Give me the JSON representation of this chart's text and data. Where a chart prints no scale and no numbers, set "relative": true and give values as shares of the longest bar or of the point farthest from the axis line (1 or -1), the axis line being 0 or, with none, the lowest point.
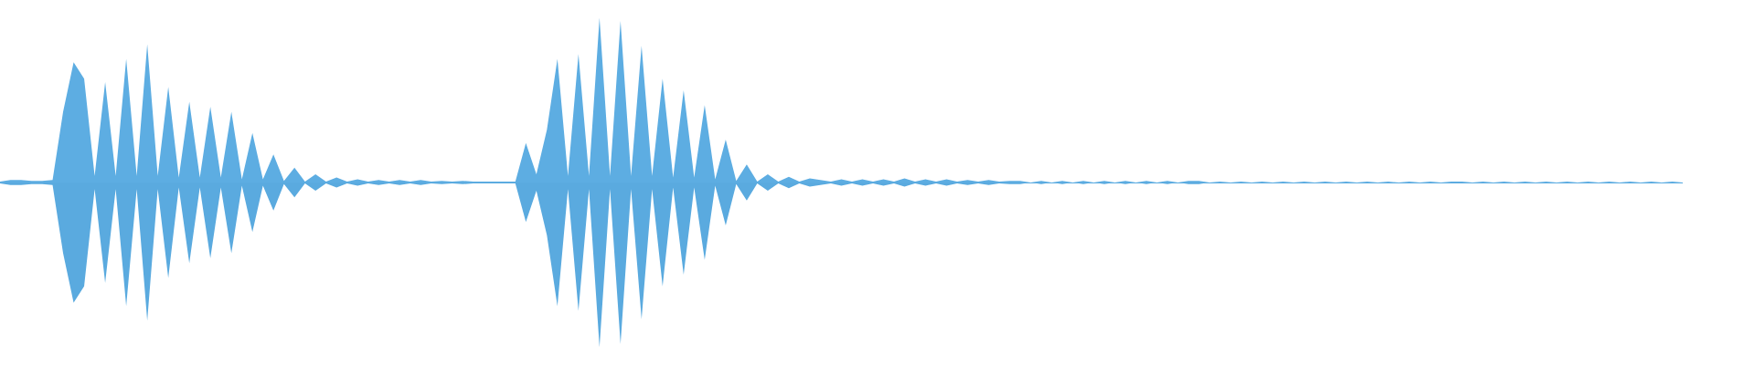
{
  "chart_data": {
    "type": "area",
    "relative": true,
    "categories": [
      null,
      null,
      null,
      null,
      null,
      null,
      null,
      null,
      null,
      null,
      null,
      null,
      null,
      null,
      null,
      null,
      null,
      null,
      null,
      null,
      null,
      null,
      null,
      null,
      null,
      null,
      null,
      null,
      null,
      null,
      null,
      null,
      null,
      null,
      null,
      null,
      null,
      null,
      null,
      null,
      null,
      null,
      null,
      null,
      null,
      null,
      null,
      null,
      null,
      null,
      null,
      null,
      null,
      null,
      null,
      null,
      null,
      null,
      null,
      null,
      null,
      null,
      null,
      null,
      null,
      null,
      null,
      null,
      null,
      null,
      null,
      null,
      null,
      null,
      null,
      null,
      null,
      null,
      null,
      null,
      null,
      null,
      null,
      null,
      null,
      null,
      null,
      null,
      null,
      null,
      null,
      null,
      null,
      null,
      null,
      null,
      null,
      null,
      null,
      null,
      null,
      null,
      null,
      null,
      null,
      null,
      null,
      null,
      null,
      null,
      null,
      null,
      null,
      null,
      null,
      null,
      null,
      null,
      null,
      null,
      null,
      null,
      null,
      null,
      null,
      null,
      null,
      null,
      null,
      null,
      null,
      null,
      null,
      null,
      null,
      null,
      null,
      null,
      null,
      null,
      null,
      null,
      null,
      null,
      null,
      null,
      null,
      null,
      null,
      null,
      null,
      null,
      null,
      null,
      null,
      null,
      null,
      null,
      null,
      null,
      null
    ],
    "series": [
      {
        "color": "#5dade2",
        "values": [
          0.005,
          0.015,
          0.015,
          0.01,
          0.01,
          0.015,
          0.43,
          0.73,
          0.63,
          0.04,
          0.61,
          0.04,
          0.75,
          0.04,
          0.84,
          0.04,
          0.58,
          0.03,
          0.49,
          0.03,
          0.46,
          0.03,
          0.43,
          0.02,
          0.3,
          0.02,
          0.17,
          0.01,
          0.09,
          0.005,
          0.05,
          0.005,
          0.03,
          0.005,
          0.02,
          0.005,
          0.015,
          0.005,
          0.015,
          0.005,
          0.015,
          0.005,
          0.01,
          0.005,
          0.01,
          0.005,
          0.005,
          0.005,
          0.005,
          0.005,
          0.24,
          0.05,
          0.32,
          0.75,
          0.04,
          0.78,
          0.04,
          1,
          0.04,
          0.98,
          0.04,
          0.83,
          0.04,
          0.63,
          0.03,
          0.56,
          0.03,
          0.47,
          0.02,
          0.26,
          0.01,
          0.11,
          0.005,
          0.05,
          0.005,
          0.035,
          0.005,
          0.025,
          0.015,
          0.005,
          0.02,
          0.005,
          0.02,
          0.005,
          0.02,
          0.005,
          0.025,
          0.005,
          0.02,
          0.005,
          0.02,
          0.005,
          0.015,
          0.005,
          0.015,
          0.005,
          0.01,
          0.01,
          0,
          0.01,
          0,
          0.01,
          0,
          0.01,
          0,
          0.01,
          0,
          0.01,
          0,
          0.01,
          0,
          0.01,
          0,
          0.01,
          0.01,
          0,
          0.005,
          0,
          0.005,
          0,
          0.005,
          0,
          0.005,
          0,
          0.005,
          0,
          0.005,
          0,
          0.005,
          0,
          0.005,
          0,
          0.005,
          0,
          0.005,
          0,
          0.005,
          0,
          0.005,
          0.005,
          0,
          0.005,
          0,
          0.005,
          0,
          0.005,
          0,
          0.005,
          0,
          0.005,
          0,
          0.005,
          0,
          0.005,
          0,
          0.005,
          0,
          0.005,
          0,
          0.005,
          0
        ]
      },
      {
        "color": "#5aaadf",
        "values": [
          -0.005,
          -0.015,
          -0.015,
          -0.01,
          -0.01,
          -0.015,
          -0.43,
          -0.73,
          -0.63,
          -0.04,
          -0.61,
          -0.04,
          -0.75,
          -0.04,
          -0.84,
          -0.04,
          -0.58,
          -0.03,
          -0.49,
          -0.03,
          -0.46,
          -0.03,
          -0.43,
          -0.02,
          -0.3,
          -0.02,
          -0.17,
          -0.01,
          -0.09,
          -0.005,
          -0.05,
          -0.005,
          -0.03,
          -0.005,
          -0.02,
          -0.005,
          -0.015,
          -0.005,
          -0.015,
          -0.005,
          -0.015,
          -0.005,
          -0.01,
          -0.005,
          -0.01,
          -0.005,
          -0.005,
          -0.005,
          -0.005,
          -0.005,
          -0.24,
          -0.05,
          -0.32,
          -0.75,
          -0.04,
          -0.78,
          -0.04,
          -1,
          -0.04,
          -0.98,
          -0.04,
          -0.83,
          -0.04,
          -0.63,
          -0.03,
          -0.56,
          -0.03,
          -0.47,
          -0.02,
          -0.26,
          -0.01,
          -0.11,
          -0.005,
          -0.05,
          -0.005,
          -0.035,
          -0.005,
          -0.025,
          -0.015,
          -0.005,
          -0.02,
          -0.005,
          -0.02,
          -0.005,
          -0.02,
          -0.005,
          -0.025,
          -0.005,
          -0.02,
          -0.005,
          -0.02,
          -0.005,
          -0.015,
          -0.005,
          -0.015,
          -0.005,
          -0.01,
          -0.01,
          0,
          -0.01,
          0,
          -0.01,
          0,
          -0.01,
          0,
          -0.01,
          0,
          -0.01,
          0,
          -0.01,
          0,
          -0.01,
          0,
          -0.01,
          -0.01,
          0,
          -0.005,
          0,
          -0.005,
          0,
          -0.005,
          0,
          -0.005,
          0,
          -0.005,
          0,
          -0.005,
          0,
          -0.005,
          0,
          -0.005,
          0,
          -0.005,
          0,
          -0.005,
          0,
          -0.005,
          0,
          -0.005,
          -0.005,
          0,
          -0.005,
          0,
          -0.005,
          0,
          -0.005,
          0,
          -0.005,
          0,
          -0.005,
          0,
          -0.005,
          0,
          -0.005,
          0,
          -0.005,
          0,
          -0.005,
          0,
          -0.005,
          0
        ]
      }
    ]
  }
}
